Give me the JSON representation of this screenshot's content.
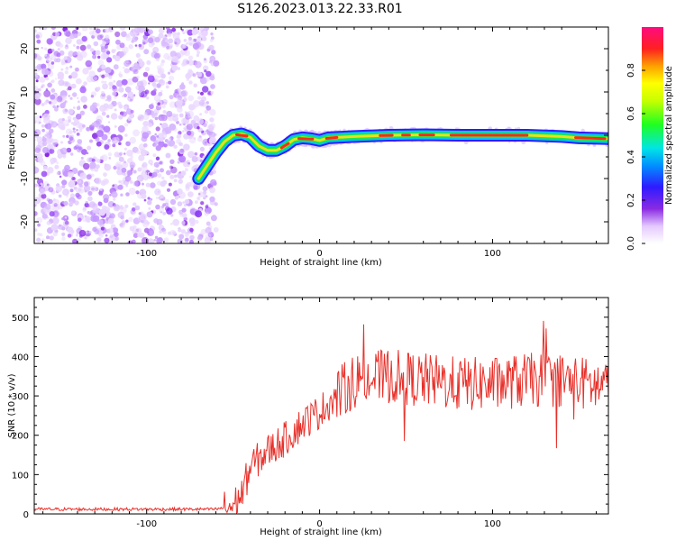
{
  "title": "S126.2023.013.22.33.R01",
  "chart_data": [
    {
      "type": "heatmap",
      "title": "S126.2023.013.22.33.R01",
      "xlabel": "Height of straight line (km)",
      "ylabel": "Frequency (Hz)",
      "xlim": [
        -165,
        167
      ],
      "ylim": [
        -25,
        25
      ],
      "xticks": [
        -100,
        0,
        100
      ],
      "yticks": [
        -20,
        -10,
        0,
        10,
        20
      ],
      "noise_region_x": [
        -165,
        -65
      ],
      "track": [
        {
          "x": -70,
          "y": -10
        },
        {
          "x": -65,
          "y": -7
        },
        {
          "x": -60,
          "y": -4
        },
        {
          "x": -55,
          "y": -1.5
        },
        {
          "x": -50,
          "y": 0
        },
        {
          "x": -45,
          "y": 0.3
        },
        {
          "x": -40,
          "y": -0.5
        },
        {
          "x": -35,
          "y": -2.5
        },
        {
          "x": -30,
          "y": -3.5
        },
        {
          "x": -25,
          "y": -3.5
        },
        {
          "x": -20,
          "y": -2.5
        },
        {
          "x": -15,
          "y": -1
        },
        {
          "x": -10,
          "y": -0.6
        },
        {
          "x": -5,
          "y": -0.8
        },
        {
          "x": 0,
          "y": -1.2
        },
        {
          "x": 5,
          "y": -0.6
        },
        {
          "x": 10,
          "y": -0.5
        },
        {
          "x": 20,
          "y": -0.3
        },
        {
          "x": 40,
          "y": 0
        },
        {
          "x": 60,
          "y": 0.1
        },
        {
          "x": 80,
          "y": 0
        },
        {
          "x": 100,
          "y": 0
        },
        {
          "x": 120,
          "y": 0
        },
        {
          "x": 140,
          "y": -0.3
        },
        {
          "x": 150,
          "y": -0.6
        },
        {
          "x": 167,
          "y": -0.8
        }
      ],
      "colorbar": {
        "label": "Normalized spectral amplitude",
        "range": [
          0,
          1
        ],
        "ticks": [
          "0.0",
          "0.2",
          "0.4",
          "0.6",
          "0.8"
        ]
      }
    },
    {
      "type": "line",
      "xlabel": "Height of straight line (km)",
      "ylabel": "SNR (10 * v/v)",
      "xlim": [
        -165,
        167
      ],
      "ylim": [
        0,
        550
      ],
      "xticks": [
        -100,
        0,
        100
      ],
      "yticks": [
        0,
        100,
        200,
        300,
        400,
        500
      ],
      "color": "#e8302a",
      "trend": [
        {
          "x": -165,
          "y": 12
        },
        {
          "x": -60,
          "y": 12
        },
        {
          "x": -50,
          "y": 20
        },
        {
          "x": -45,
          "y": 50
        },
        {
          "x": -40,
          "y": 120
        },
        {
          "x": -30,
          "y": 160
        },
        {
          "x": -20,
          "y": 190
        },
        {
          "x": -10,
          "y": 230
        },
        {
          "x": 0,
          "y": 260
        },
        {
          "x": 10,
          "y": 300
        },
        {
          "x": 20,
          "y": 340
        },
        {
          "x": 40,
          "y": 350
        },
        {
          "x": 60,
          "y": 340
        },
        {
          "x": 80,
          "y": 330
        },
        {
          "x": 100,
          "y": 330
        },
        {
          "x": 120,
          "y": 340
        },
        {
          "x": 140,
          "y": 340
        },
        {
          "x": 167,
          "y": 320
        }
      ]
    }
  ]
}
